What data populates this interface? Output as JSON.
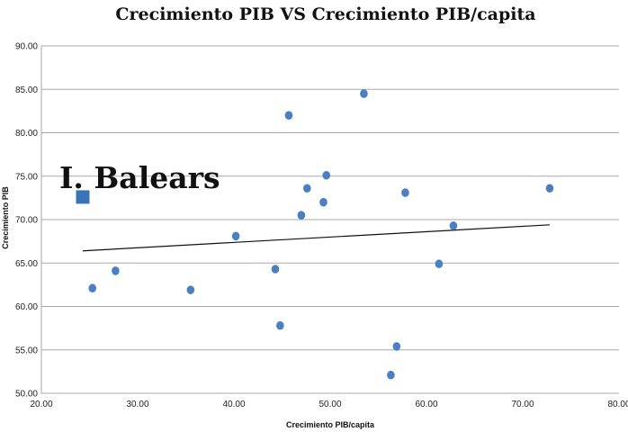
{
  "chart_data": {
    "type": "scatter",
    "title": "Crecimiento PIB VS Crecimiento PIB/capita",
    "xlabel": "Crecimiento PIB/capita",
    "ylabel": "Crecimiento PIB",
    "xlim": [
      20,
      80
    ],
    "ylim": [
      50,
      90
    ],
    "x_ticks": [
      "20.00",
      "30.00",
      "40.00",
      "50.00",
      "60.00",
      "70.00",
      "80.00"
    ],
    "y_ticks": [
      "50.00",
      "55.00",
      "60.00",
      "65.00",
      "70.00",
      "75.00",
      "80.00",
      "85.00",
      "90.00"
    ],
    "grid": "horizontal",
    "legend": "none",
    "point_color": "#4a7fc1",
    "highlight_color": "#3b73b9",
    "trend_color": "#111111",
    "series": [
      {
        "points": [
          {
            "x": 25.3,
            "y": 62.1
          },
          {
            "x": 27.7,
            "y": 64.1
          },
          {
            "x": 35.5,
            "y": 61.9
          },
          {
            "x": 40.2,
            "y": 68.1
          },
          {
            "x": 44.3,
            "y": 64.3
          },
          {
            "x": 44.8,
            "y": 57.8
          },
          {
            "x": 45.7,
            "y": 82.0
          },
          {
            "x": 47.0,
            "y": 70.5
          },
          {
            "x": 47.6,
            "y": 73.6
          },
          {
            "x": 49.3,
            "y": 72.0
          },
          {
            "x": 49.6,
            "y": 75.1
          },
          {
            "x": 53.5,
            "y": 84.5
          },
          {
            "x": 56.3,
            "y": 52.1
          },
          {
            "x": 56.9,
            "y": 55.4
          },
          {
            "x": 57.8,
            "y": 73.1
          },
          {
            "x": 61.3,
            "y": 64.9
          },
          {
            "x": 62.8,
            "y": 69.3
          },
          {
            "x": 72.8,
            "y": 73.6
          }
        ]
      }
    ],
    "highlight": {
      "x": 24.3,
      "y": 72.6,
      "label": "I. Balears"
    },
    "trendline": {
      "x": [
        24.3,
        72.8
      ],
      "y": [
        66.4,
        69.4
      ]
    }
  }
}
